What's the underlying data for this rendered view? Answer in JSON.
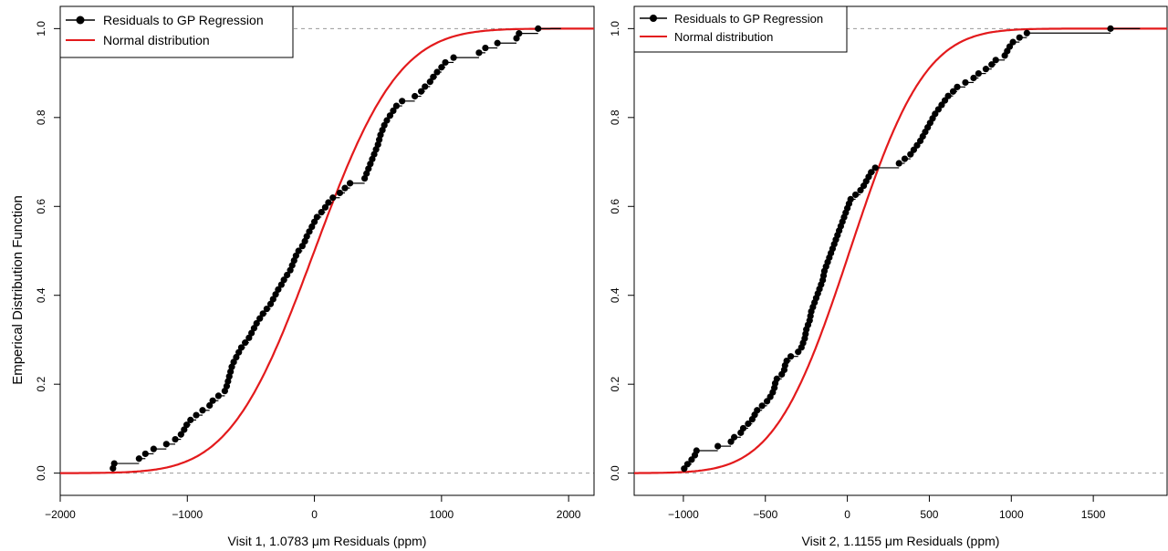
{
  "figure": {
    "shared_ylabel": "Emperical Distribution Function"
  },
  "colors": {
    "points": "#000000",
    "normal": "#e31a1c",
    "reference": "#999999"
  },
  "chart_data": [
    {
      "type": "line",
      "panel": "left",
      "xlabel_before": "Visit 1, 1.0783 ",
      "xlabel_mu": "μ",
      "xlabel_after": "m Residuals (ppm)",
      "ylabel": "Emperical Distribution Function",
      "xlim": [
        -2000,
        2200
      ],
      "ylim": [
        -0.05,
        1.05
      ],
      "xticks": [
        -2000,
        -1000,
        0,
        1000,
        2000
      ],
      "xtick_labels": [
        "−2000",
        "−1000",
        "0",
        "1000",
        "2000"
      ],
      "yticks": [
        0.0,
        0.2,
        0.4,
        0.6,
        0.8,
        1.0
      ],
      "ytick_labels": [
        "0.0",
        "0.2",
        "0.4",
        "0.6",
        "0.8",
        "1.0"
      ],
      "reference_lines": [
        0,
        1
      ],
      "legend": {
        "position": "top-left",
        "entries": [
          "Residuals to GP Regression",
          "Normal distribution"
        ]
      },
      "normal": {
        "mean": 0,
        "sd": 520
      },
      "series": [
        {
          "name": "Residuals to GP Regression",
          "kind": "ecdf",
          "x": [
            -1585,
            -1575,
            -1380,
            -1330,
            -1265,
            -1165,
            -1095,
            -1050,
            -1025,
            -1005,
            -975,
            -930,
            -880,
            -825,
            -800,
            -755,
            -705,
            -690,
            -680,
            -670,
            -660,
            -650,
            -635,
            -615,
            -595,
            -575,
            -545,
            -515,
            -495,
            -475,
            -455,
            -430,
            -405,
            -375,
            -345,
            -325,
            -305,
            -285,
            -260,
            -240,
            -215,
            -190,
            -175,
            -160,
            -145,
            -125,
            -95,
            -75,
            -60,
            -40,
            -20,
            0,
            20,
            55,
            85,
            110,
            145,
            200,
            240,
            280,
            395,
            410,
            425,
            440,
            455,
            470,
            485,
            500,
            510,
            520,
            535,
            550,
            570,
            595,
            620,
            645,
            690,
            790,
            840,
            870,
            910,
            935,
            965,
            1000,
            1030,
            1095,
            1295,
            1345,
            1440,
            1590,
            1610,
            1760
          ]
        },
        {
          "name": "Normal distribution",
          "kind": "line"
        }
      ]
    },
    {
      "type": "line",
      "panel": "right",
      "xlabel_before": "Visit 2, 1.1155 ",
      "xlabel_mu": "μ",
      "xlabel_after": "m Residuals (ppm)",
      "ylabel": "",
      "xlim": [
        -1300,
        1950
      ],
      "ylim": [
        -0.05,
        1.05
      ],
      "xticks": [
        -1000,
        -500,
        0,
        500,
        1000,
        1500
      ],
      "xtick_labels": [
        "−1000",
        "−500",
        "0",
        "500",
        "1000",
        "1500"
      ],
      "yticks": [
        0.0,
        0.2,
        0.4,
        0.6,
        0.8,
        1.0
      ],
      "ytick_labels": [
        "0.0",
        "0.2",
        "0.4",
        "0.6",
        "0.8",
        "1.0"
      ],
      "reference_lines": [
        0,
        1
      ],
      "legend": {
        "position": "top-left",
        "entries": [
          "Residuals to GP Regression",
          "Normal distribution"
        ]
      },
      "normal": {
        "mean": 15,
        "sd": 360
      },
      "series": [
        {
          "name": "Residuals to GP Regression",
          "kind": "ecdf",
          "x": [
            -995,
            -975,
            -950,
            -930,
            -920,
            -790,
            -710,
            -690,
            -650,
            -635,
            -605,
            -580,
            -565,
            -550,
            -520,
            -490,
            -470,
            -455,
            -445,
            -440,
            -430,
            -400,
            -385,
            -380,
            -370,
            -345,
            -300,
            -280,
            -270,
            -260,
            -255,
            -250,
            -240,
            -230,
            -225,
            -220,
            -210,
            -200,
            -190,
            -180,
            -170,
            -160,
            -150,
            -145,
            -140,
            -130,
            -120,
            -110,
            -100,
            -90,
            -80,
            -70,
            -60,
            -50,
            -40,
            -30,
            -20,
            -10,
            0,
            10,
            20,
            50,
            80,
            100,
            115,
            130,
            145,
            170,
            315,
            350,
            385,
            405,
            425,
            445,
            460,
            475,
            490,
            505,
            520,
            535,
            555,
            575,
            595,
            615,
            645,
            670,
            720,
            770,
            800,
            845,
            880,
            905,
            960,
            975,
            990,
            1010,
            1050,
            1095,
            1605
          ]
        },
        {
          "name": "Normal distribution",
          "kind": "line"
        }
      ]
    }
  ]
}
